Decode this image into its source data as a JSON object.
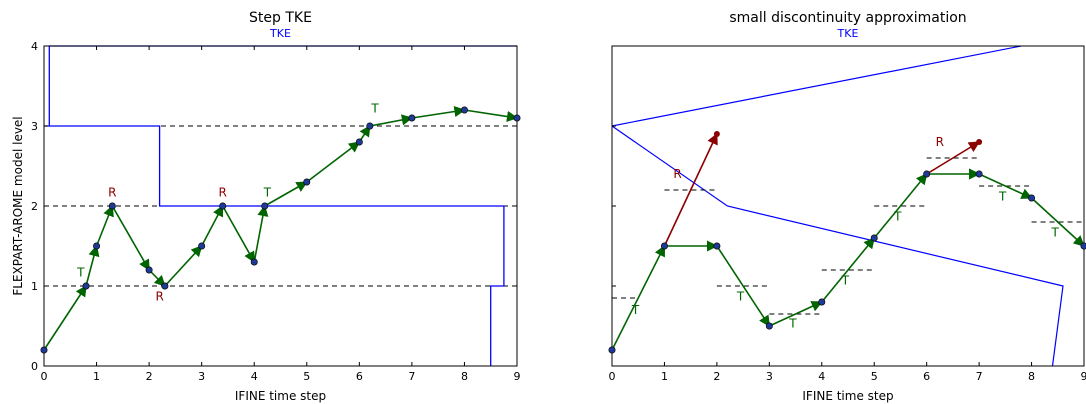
{
  "figure": {
    "ylabel": "FLEXPART-AROME model level",
    "colors": {
      "tke": "#0000ff",
      "arrow_green": "#006400",
      "arrow_red": "#8b0000",
      "point_fill": "#1f3a93",
      "dash": "#000000"
    }
  },
  "chart_data": [
    {
      "type": "line",
      "title": "Step TKE",
      "tke_label": "TKE",
      "xlabel": "IFINE time step",
      "ylabel": "FLEXPART-AROME model level",
      "xlim": [
        0,
        9
      ],
      "ylim": [
        0,
        4
      ],
      "xticks": [
        "0",
        "1",
        "2",
        "3",
        "4",
        "5",
        "6",
        "7",
        "8",
        "9"
      ],
      "yticks": [
        "0",
        "1",
        "2",
        "3",
        "4"
      ],
      "level_lines": [
        1,
        2,
        3
      ],
      "tke_curve": [
        [
          0.1,
          4
        ],
        [
          0.1,
          3
        ],
        [
          2.2,
          3
        ],
        [
          2.2,
          2
        ],
        [
          8.75,
          2
        ],
        [
          8.75,
          1
        ],
        [
          8.5,
          1
        ],
        [
          8.5,
          0
        ],
        [
          0.0,
          4
        ],
        [
          9.0,
          4
        ]
      ],
      "tke_curve_segments": [
        [
          [
            0.1,
            3.0
          ],
          [
            0.1,
            4.0
          ],
          [
            9.0,
            4.0
          ]
        ],
        [
          [
            0.0,
            3.0
          ],
          [
            2.2,
            3.0
          ],
          [
            2.2,
            2.0
          ],
          [
            8.75,
            2.0
          ],
          [
            8.75,
            1.0
          ],
          [
            8.5,
            1.0
          ],
          [
            8.5,
            0.0
          ]
        ]
      ],
      "path_points": [
        {
          "x": 0.0,
          "y": 0.2,
          "kind": "T"
        },
        {
          "x": 0.8,
          "y": 1.0,
          "kind": "T"
        },
        {
          "x": 1.0,
          "y": 1.5,
          "kind": "T"
        },
        {
          "x": 1.3,
          "y": 2.0,
          "kind": "R"
        },
        {
          "x": 2.0,
          "y": 1.2,
          "kind": "T"
        },
        {
          "x": 2.3,
          "y": 1.0,
          "kind": "R"
        },
        {
          "x": 3.0,
          "y": 1.5,
          "kind": "T"
        },
        {
          "x": 3.4,
          "y": 2.0,
          "kind": "R"
        },
        {
          "x": 4.0,
          "y": 1.3,
          "kind": "T"
        },
        {
          "x": 4.2,
          "y": 2.0,
          "kind": "T"
        },
        {
          "x": 5.0,
          "y": 2.3,
          "kind": "T"
        },
        {
          "x": 6.0,
          "y": 2.8,
          "kind": "T"
        },
        {
          "x": 6.2,
          "y": 3.0,
          "kind": "T"
        },
        {
          "x": 7.0,
          "y": 3.1,
          "kind": "T"
        },
        {
          "x": 8.0,
          "y": 3.2,
          "kind": "T"
        },
        {
          "x": 9.0,
          "y": 3.1,
          "kind": "T"
        }
      ],
      "labels": [
        {
          "text": "T",
          "x": 0.7,
          "y": 1.12,
          "color": "green"
        },
        {
          "text": "R",
          "x": 1.3,
          "y": 2.12,
          "color": "red"
        },
        {
          "text": "R",
          "x": 2.2,
          "y": 0.82,
          "color": "red"
        },
        {
          "text": "R",
          "x": 3.4,
          "y": 2.12,
          "color": "red"
        },
        {
          "text": "T",
          "x": 4.25,
          "y": 2.12,
          "color": "green"
        },
        {
          "text": "T",
          "x": 6.3,
          "y": 3.17,
          "color": "green"
        }
      ]
    },
    {
      "type": "line",
      "title": "small discontinuity approximation",
      "tke_label": "TKE",
      "xlabel": "IFINE time step",
      "xlim": [
        0,
        9
      ],
      "ylim": [
        0,
        4
      ],
      "xticks": [
        "0",
        "1",
        "2",
        "3",
        "4",
        "5",
        "6",
        "7",
        "8",
        "9"
      ],
      "tke_lines": [
        [
          [
            0,
            3.0
          ],
          [
            7.8,
            4.0
          ]
        ],
        [
          [
            0,
            3.0
          ],
          [
            2.2,
            2.0
          ],
          [
            8.6,
            1.0
          ],
          [
            8.4,
            0.0
          ]
        ]
      ],
      "dashed_segments": [
        {
          "x0": 0.0,
          "x1": 0.5,
          "y": 0.85
        },
        {
          "x0": 1.0,
          "x1": 2.0,
          "y": 2.2
        },
        {
          "x0": 2.0,
          "x1": 3.0,
          "y": 1.0
        },
        {
          "x0": 3.0,
          "x1": 4.0,
          "y": 0.65
        },
        {
          "x0": 4.0,
          "x1": 5.0,
          "y": 1.2
        },
        {
          "x0": 5.0,
          "x1": 6.0,
          "y": 2.0
        },
        {
          "x0": 6.0,
          "x1": 7.0,
          "y": 2.6
        },
        {
          "x0": 7.0,
          "x1": 8.0,
          "y": 2.25
        },
        {
          "x0": 8.0,
          "x1": 9.0,
          "y": 1.8
        }
      ],
      "left_ticks_only": [
        1,
        2,
        3
      ],
      "green_path": [
        [
          0.0,
          0.2
        ],
        [
          1.0,
          1.5
        ],
        [
          2.0,
          1.5
        ],
        [
          3.0,
          0.5
        ],
        [
          4.0,
          0.8
        ],
        [
          5.0,
          1.6
        ],
        [
          6.0,
          2.4
        ],
        [
          7.0,
          2.4
        ],
        [
          8.0,
          2.1
        ],
        [
          9.0,
          1.5
        ]
      ],
      "red_arrows": [
        [
          [
            1.0,
            1.5
          ],
          [
            2.0,
            2.9
          ]
        ],
        [
          [
            6.0,
            2.4
          ],
          [
            7.0,
            2.8
          ]
        ]
      ],
      "labels": [
        {
          "text": "T",
          "x": 0.45,
          "y": 0.65,
          "color": "green"
        },
        {
          "text": "R",
          "x": 1.25,
          "y": 2.35,
          "color": "red"
        },
        {
          "text": "T",
          "x": 2.45,
          "y": 0.82,
          "color": "green"
        },
        {
          "text": "T",
          "x": 3.45,
          "y": 0.48,
          "color": "green"
        },
        {
          "text": "T",
          "x": 4.45,
          "y": 1.02,
          "color": "green"
        },
        {
          "text": "T",
          "x": 5.45,
          "y": 1.82,
          "color": "green"
        },
        {
          "text": "R",
          "x": 6.25,
          "y": 2.75,
          "color": "red"
        },
        {
          "text": "T",
          "x": 7.45,
          "y": 2.07,
          "color": "green"
        },
        {
          "text": "T",
          "x": 8.45,
          "y": 1.62,
          "color": "green"
        }
      ]
    }
  ]
}
